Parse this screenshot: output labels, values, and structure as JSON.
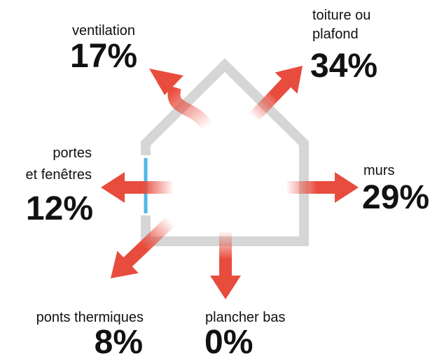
{
  "items": [
    {
      "lines": [
        "ventilation"
      ],
      "value": "17%"
    },
    {
      "lines": [
        "toiture ou",
        "plafond"
      ],
      "value": "34%"
    },
    {
      "lines": [
        "murs"
      ],
      "value": "29%"
    },
    {
      "lines": [
        "portes",
        "et fenêtres"
      ],
      "value": "12%"
    },
    {
      "lines": [
        "ponts thermiques"
      ],
      "value": "8%"
    },
    {
      "lines": [
        "plancher bas"
      ],
      "value": "0%"
    }
  ]
}
